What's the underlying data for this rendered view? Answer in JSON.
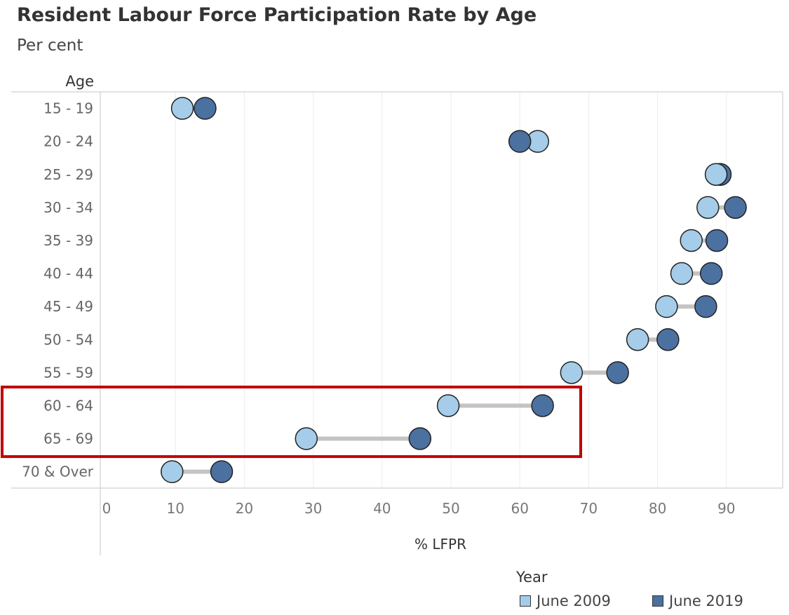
{
  "chart_data": {
    "type": "dumbbell",
    "title": "Resident Labour Force Participation Rate by Age",
    "subtitle": "Per cent",
    "y_header": "Age",
    "xlabel": "% LFPR",
    "xlim": [
      0,
      98
    ],
    "xticks": [
      0,
      10,
      20,
      30,
      40,
      50,
      60,
      70,
      80,
      90
    ],
    "categories": [
      "15 - 19",
      "20 - 24",
      "25 - 29",
      "30 - 34",
      "35 - 39",
      "40 - 44",
      "45 - 49",
      "50 - 54",
      "55 - 59",
      "60 - 64",
      "65 - 69",
      "70 & Over"
    ],
    "series": [
      {
        "name": "June 2009",
        "color": "#a5cde9",
        "values": [
          11.0,
          62.6,
          88.5,
          87.3,
          84.9,
          83.5,
          81.3,
          77.1,
          67.5,
          49.6,
          29.0,
          9.5
        ]
      },
      {
        "name": "June 2019",
        "color": "#4b71a0",
        "values": [
          14.3,
          60.0,
          89.1,
          91.3,
          88.6,
          87.8,
          87.0,
          81.5,
          74.2,
          63.3,
          45.5,
          16.7
        ]
      }
    ],
    "legend_title": "Year",
    "highlight_categories": [
      "60 - 64",
      "65 - 69"
    ],
    "highlight_color": "#c00000"
  }
}
